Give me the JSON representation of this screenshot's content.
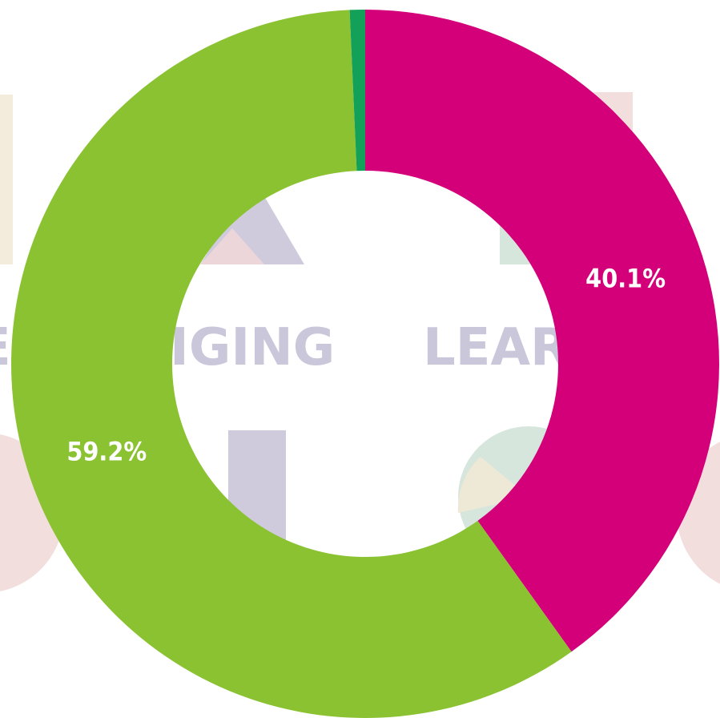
{
  "chart_data": {
    "type": "donut",
    "values": [
      40.1,
      59.2,
      0.7
    ],
    "value_labels": [
      "40.1%",
      "59.2%",
      null
    ],
    "colors": [
      "#d4007a",
      "#8bc232",
      "#13a15a"
    ],
    "background_texts": [
      "E",
      "IGING",
      "LEAR"
    ]
  }
}
